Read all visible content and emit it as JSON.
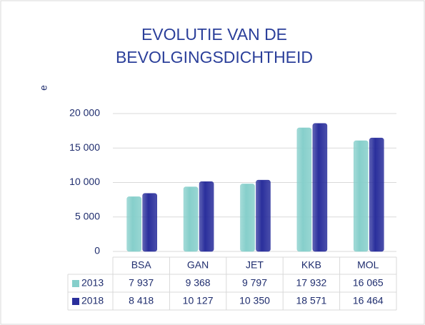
{
  "chart_data": {
    "type": "bar",
    "title": "EVOLUTIE VAN DE BEVOLGINGSDICHTHEID",
    "y_label": "e",
    "categories": [
      "BSA",
      "GAN",
      "JET",
      "KKB",
      "MOL"
    ],
    "series": [
      {
        "name": "2013",
        "color": "#86cfcb",
        "values": [
          7937,
          9368,
          9797,
          17932,
          16065
        ],
        "value_labels": [
          "7 937",
          "9 368",
          "9 797",
          "17 932",
          "16 065"
        ]
      },
      {
        "name": "2018",
        "color": "#2a2f9c",
        "values": [
          8418,
          10127,
          10350,
          18571,
          16464
        ],
        "value_labels": [
          "8 418",
          "10 127",
          "10 350",
          "18 571",
          "16 464"
        ]
      }
    ],
    "ylim": [
      0,
      20000
    ],
    "yticks": [
      {
        "value": 0,
        "label": "0"
      },
      {
        "value": 5000,
        "label": "5 000"
      },
      {
        "value": 10000,
        "label": "10 000"
      },
      {
        "value": 15000,
        "label": "15 000"
      },
      {
        "value": 20000,
        "label": "20 000"
      }
    ],
    "grid": true
  }
}
